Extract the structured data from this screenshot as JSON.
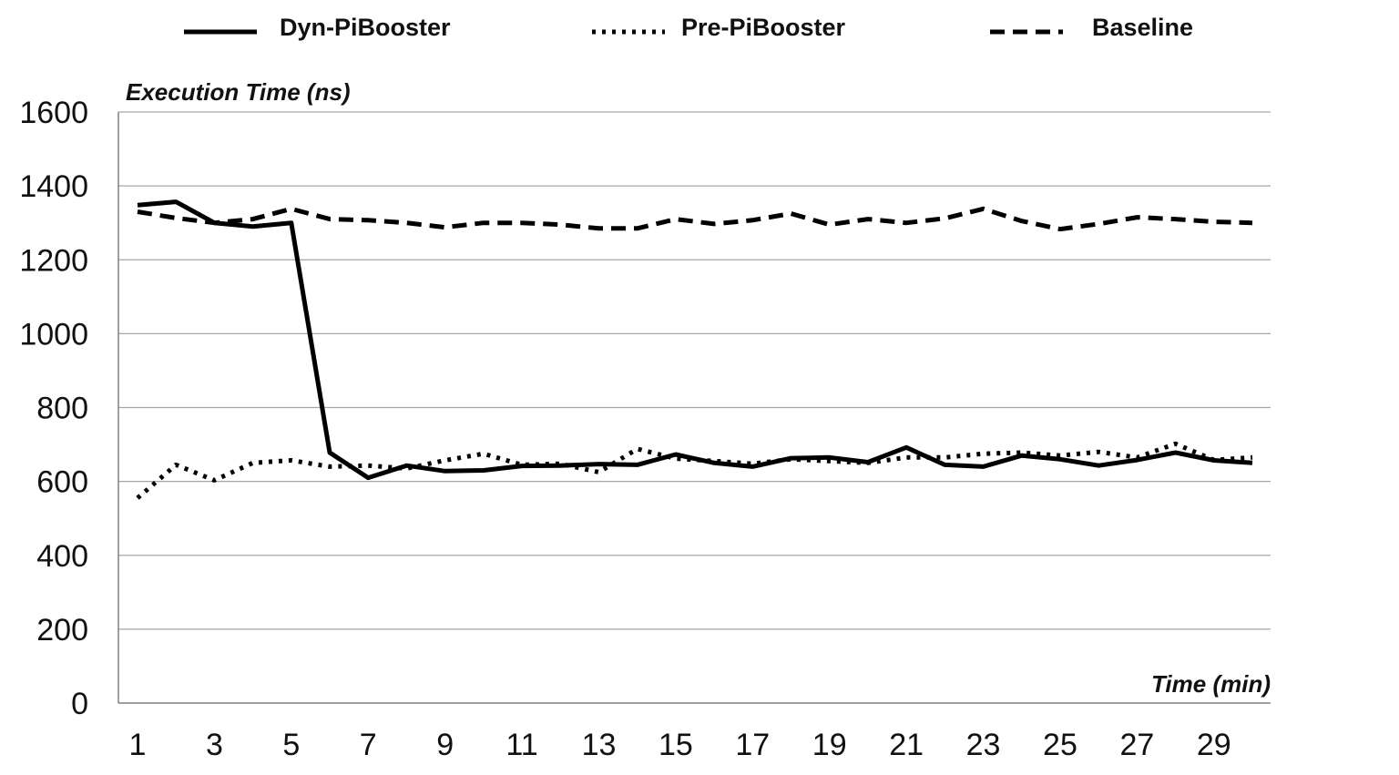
{
  "chart_data": {
    "type": "line",
    "xlabel": "Time (min)",
    "ylabel": "Execution Time (ns)",
    "ylim": [
      0,
      1600
    ],
    "yticks": [
      0,
      200,
      400,
      600,
      800,
      1000,
      1200,
      1400,
      1600
    ],
    "x": [
      1,
      2,
      3,
      4,
      5,
      6,
      7,
      8,
      9,
      10,
      11,
      12,
      13,
      14,
      15,
      16,
      17,
      18,
      19,
      20,
      21,
      22,
      23,
      24,
      25,
      26,
      27,
      28,
      29,
      30
    ],
    "xtick_labels": [
      "1",
      "3",
      "5",
      "7",
      "9",
      "11",
      "13",
      "15",
      "17",
      "19",
      "21",
      "23",
      "25",
      "27",
      "29"
    ],
    "grid": "horizontal",
    "legend_position": "top",
    "series": [
      {
        "name": "Dyn-PiBooster",
        "style": "solid",
        "values": [
          1348,
          1357,
          1300,
          1290,
          1300,
          678,
          610,
          643,
          628,
          630,
          642,
          643,
          647,
          645,
          673,
          650,
          640,
          663,
          665,
          652,
          692,
          645,
          640,
          670,
          660,
          643,
          658,
          678,
          657,
          650
        ]
      },
      {
        "name": "Pre-PiBooster",
        "style": "dotted",
        "values": [
          555,
          645,
          603,
          650,
          657,
          640,
          643,
          635,
          657,
          675,
          645,
          648,
          625,
          688,
          662,
          655,
          648,
          660,
          655,
          650,
          665,
          665,
          675,
          678,
          670,
          680,
          665,
          702,
          658,
          665
        ]
      },
      {
        "name": "Baseline",
        "style": "dashed",
        "values": [
          1330,
          1313,
          1300,
          1310,
          1338,
          1310,
          1307,
          1300,
          1288,
          1300,
          1300,
          1295,
          1285,
          1285,
          1310,
          1297,
          1307,
          1325,
          1295,
          1310,
          1300,
          1312,
          1338,
          1305,
          1283,
          1297,
          1315,
          1310,
          1303,
          1300
        ]
      }
    ]
  }
}
